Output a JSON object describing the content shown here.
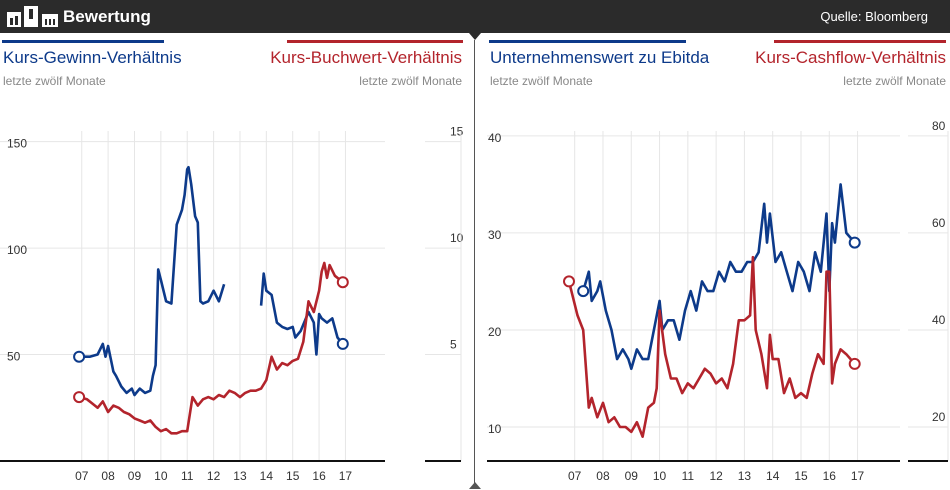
{
  "header": {
    "title": "Bewertung",
    "source": "Quelle: Bloomberg"
  },
  "left": {
    "title_blue": "Kurs-Gewinn-Verhältnis",
    "title_red": "Kurs-Buchwert-Verhältnis",
    "subtitle_blue": "letzte zwölf Monate",
    "subtitle_red": "letzte zwölf Monate"
  },
  "right": {
    "title_blue": "Unternehmenswert zu Ebitda",
    "title_red": "Kurs-Cashflow-Verhältnis",
    "subtitle_blue": "letzte zwölf Monate",
    "subtitle_red": "letzte zwölf Monate"
  },
  "colors": {
    "blue": "#0d3a8a",
    "red": "#b3242c",
    "grid": "#e6e6e6"
  },
  "chart_data": [
    {
      "type": "line",
      "title": "Kurs-Gewinn-Verhältnis / Kurs-Buchwert-Verhältnis",
      "x_ticks": [
        "07",
        "08",
        "09",
        "10",
        "11",
        "12",
        "13",
        "14",
        "15",
        "16",
        "17"
      ],
      "x_tick_values": [
        2007,
        2008,
        2009,
        2010,
        2011,
        2012,
        2013,
        2014,
        2015,
        2016,
        2017
      ],
      "x_range": [
        2003.9,
        2018.5
      ],
      "y_left": {
        "ticks": [
          "50",
          "100",
          "150"
        ],
        "tick_values": [
          50,
          100,
          150
        ],
        "range": [
          0,
          155
        ]
      },
      "y_right": {
        "ticks": [
          "5",
          "10",
          "15"
        ],
        "tick_values": [
          5,
          10,
          15
        ],
        "range": [
          0,
          15.5
        ]
      },
      "series": [
        {
          "name": "Kurs-Gewinn-Verhältnis",
          "axis": "left",
          "color": "blue",
          "x": [
            2006.9,
            2007.3,
            2007.6,
            2007.8,
            2007.9,
            2008.0,
            2008.2,
            2008.3,
            2008.5,
            2008.7,
            2008.9,
            2009.0,
            2009.2,
            2009.4,
            2009.6,
            2009.7,
            2009.8,
            2009.9,
            2010.0,
            2010.2,
            2010.4,
            2010.6,
            2010.8,
            2010.9,
            2011.0,
            2011.05,
            2011.15,
            2011.3,
            2011.4,
            2011.5,
            2011.6,
            2011.8,
            2012.0,
            2012.2,
            2012.4,
            null,
            2013.8,
            2013.9,
            2014.0,
            2014.2,
            2014.4,
            2014.6,
            2014.8,
            2015.0,
            2015.1,
            2015.3,
            2015.5,
            2015.6,
            2015.8,
            2015.9,
            2016.0,
            2016.1,
            2016.3,
            2016.5,
            2016.7,
            2016.9
          ],
          "y": [
            49,
            49,
            50,
            55,
            49,
            54,
            42,
            40,
            35,
            32,
            34,
            31,
            34,
            32,
            33,
            40,
            45,
            90,
            85,
            75,
            74,
            111,
            118,
            125,
            137,
            138,
            130,
            115,
            112,
            75,
            74,
            75,
            80,
            75,
            83,
            null,
            73,
            88,
            80,
            78,
            65,
            63,
            62,
            63,
            58,
            61,
            67,
            70,
            65,
            50,
            69,
            67,
            65,
            67,
            58,
            55
          ]
        },
        {
          "name": "Kurs-Buchwert-Verhältnis",
          "axis": "right",
          "color": "red",
          "x": [
            2006.9,
            2007.2,
            2007.4,
            2007.6,
            2007.8,
            2008.0,
            2008.2,
            2008.4,
            2008.6,
            2008.8,
            2009.0,
            2009.2,
            2009.4,
            2009.6,
            2009.8,
            2010.0,
            2010.2,
            2010.4,
            2010.6,
            2010.8,
            2011.0,
            2011.2,
            2011.4,
            2011.6,
            2011.8,
            2012.0,
            2012.2,
            2012.4,
            2012.6,
            2012.8,
            2013.0,
            2013.2,
            2013.4,
            2013.6,
            2013.8,
            2014.0,
            2014.2,
            2014.4,
            2014.6,
            2014.8,
            2015.0,
            2015.2,
            2015.4,
            2015.6,
            2015.8,
            2016.0,
            2016.1,
            2016.2,
            2016.3,
            2016.4,
            2016.6,
            2016.8,
            2016.9
          ],
          "y": [
            3.0,
            2.9,
            2.7,
            2.5,
            2.8,
            2.3,
            2.6,
            2.5,
            2.3,
            2.2,
            2.0,
            1.9,
            1.8,
            1.9,
            1.6,
            1.4,
            1.5,
            1.3,
            1.3,
            1.4,
            1.4,
            3.0,
            2.6,
            2.9,
            3.0,
            2.9,
            3.1,
            3.0,
            3.3,
            3.2,
            3.0,
            3.2,
            3.3,
            3.3,
            3.4,
            3.8,
            4.9,
            4.3,
            4.6,
            4.5,
            4.7,
            4.8,
            5.6,
            7.5,
            7.0,
            8.0,
            8.9,
            9.3,
            8.6,
            9.2,
            8.7,
            8.5,
            8.4
          ]
        }
      ]
    },
    {
      "type": "line",
      "title": "Unternehmenswert zu Ebitda / Kurs-Cashflow-Verhältnis",
      "x_ticks": [
        "07",
        "08",
        "09",
        "10",
        "11",
        "12",
        "13",
        "14",
        "15",
        "16",
        "17"
      ],
      "x_tick_values": [
        2007,
        2008,
        2009,
        2010,
        2011,
        2012,
        2013,
        2014,
        2015,
        2016,
        2017
      ],
      "x_range": [
        2003.9,
        2018.5
      ],
      "y_left": {
        "ticks": [
          "10",
          "20",
          "30",
          "40"
        ],
        "tick_values": [
          10,
          20,
          30,
          40
        ],
        "range": [
          6.5,
          40.5
        ]
      },
      "y_right": {
        "ticks": [
          "20",
          "40",
          "60",
          "80"
        ],
        "tick_values": [
          20,
          40,
          60,
          80
        ],
        "range": [
          13,
          81
        ]
      },
      "series": [
        {
          "name": "Unternehmenswert zu Ebitda",
          "axis": "left",
          "color": "blue",
          "x": [
            2007.3,
            2007.5,
            2007.6,
            2007.8,
            2007.9,
            2008.1,
            2008.3,
            2008.5,
            2008.7,
            2008.9,
            2009.0,
            2009.2,
            2009.4,
            2009.6,
            2009.8,
            2010.0,
            2010.1,
            2010.3,
            2010.5,
            2010.7,
            2010.9,
            2011.1,
            2011.3,
            2011.5,
            2011.7,
            2011.9,
            2012.1,
            2012.3,
            2012.5,
            2012.7,
            2012.9,
            2013.1,
            2013.3,
            2013.5,
            2013.7,
            2013.8,
            2013.9,
            2014.1,
            2014.3,
            2014.5,
            2014.7,
            2014.9,
            2015.1,
            2015.3,
            2015.5,
            2015.7,
            2015.9,
            2016.0,
            2016.1,
            2016.2,
            2016.4,
            2016.6,
            2016.9
          ],
          "y": [
            24,
            26,
            23,
            24,
            25,
            22,
            20,
            17,
            18,
            17,
            16,
            18,
            17,
            17,
            20,
            23,
            20,
            21,
            21,
            19,
            22,
            24,
            22,
            25,
            24,
            24,
            26,
            25,
            27,
            26,
            26,
            27,
            27,
            28,
            33,
            29,
            32,
            27,
            28,
            26,
            24,
            27,
            26,
            24,
            28,
            26,
            32,
            24,
            31,
            29,
            35,
            30,
            29
          ]
        },
        {
          "name": "Kurs-Cashflow-Verhältnis",
          "axis": "right",
          "color": "red",
          "x": [
            2006.8,
            2007.1,
            2007.3,
            2007.5,
            2007.6,
            2007.8,
            2008.0,
            2008.2,
            2008.4,
            2008.6,
            2008.8,
            2009.0,
            2009.2,
            2009.4,
            2009.6,
            2009.8,
            2009.9,
            2010.0,
            2010.2,
            2010.4,
            2010.6,
            2010.8,
            2011.0,
            2011.2,
            2011.4,
            2011.6,
            2011.8,
            2012.0,
            2012.2,
            2012.4,
            2012.6,
            2012.8,
            2013.0,
            2013.2,
            2013.3,
            2013.4,
            2013.6,
            2013.8,
            2013.9,
            2014.0,
            2014.2,
            2014.4,
            2014.6,
            2014.8,
            2015.0,
            2015.2,
            2015.4,
            2015.6,
            2015.8,
            2015.9,
            2016.0,
            2016.1,
            2016.2,
            2016.4,
            2016.6,
            2016.9
          ],
          "y": [
            50,
            43,
            40,
            24,
            26,
            22,
            25,
            21,
            22,
            20,
            20,
            19,
            21,
            18,
            24,
            25,
            28,
            44,
            35,
            30,
            30,
            27,
            29,
            28,
            30,
            32,
            31,
            29,
            30,
            28,
            33,
            42,
            42,
            43,
            55,
            40,
            35,
            28,
            39,
            34,
            34,
            27,
            30,
            26,
            27,
            26,
            31,
            35,
            33,
            52,
            52,
            29,
            33,
            36,
            35,
            33
          ]
        }
      ]
    }
  ]
}
